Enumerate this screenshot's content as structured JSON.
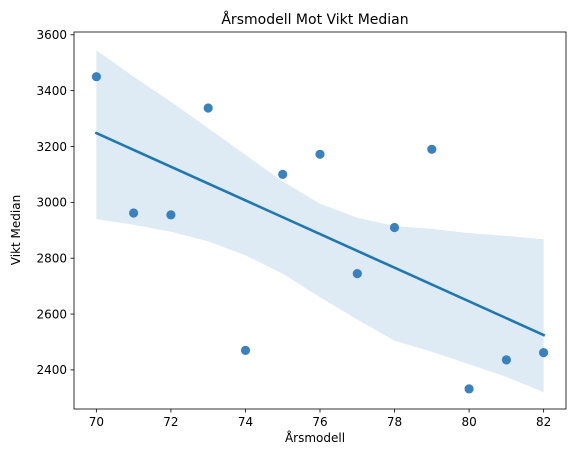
{
  "chart_data": {
    "type": "scatter",
    "title": "Årsmodell Mot Vikt Median",
    "xlabel": "Årsmodell",
    "ylabel": "Vikt Median",
    "xlim": [
      69.4,
      82.6
    ],
    "ylim": [
      2260,
      3610
    ],
    "xticks": [
      "70",
      "72",
      "74",
      "76",
      "78",
      "80",
      "82"
    ],
    "yticks": [
      "2400",
      "2600",
      "2800",
      "3000",
      "3200",
      "3400",
      "3600"
    ],
    "grid": false,
    "legend": "none",
    "points": [
      {
        "x": 70,
        "y": 3450
      },
      {
        "x": 71,
        "y": 2962
      },
      {
        "x": 72,
        "y": 2955
      },
      {
        "x": 73,
        "y": 3338
      },
      {
        "x": 74,
        "y": 2470
      },
      {
        "x": 75,
        "y": 3100
      },
      {
        "x": 76,
        "y": 3172
      },
      {
        "x": 77,
        "y": 2745
      },
      {
        "x": 78,
        "y": 2910
      },
      {
        "x": 79,
        "y": 3190
      },
      {
        "x": 80,
        "y": 2332
      },
      {
        "x": 81,
        "y": 2436
      },
      {
        "x": 82,
        "y": 2462
      }
    ],
    "regression_line": [
      {
        "x": 70,
        "y": 3248
      },
      {
        "x": 82,
        "y": 2525
      }
    ],
    "confidence_band": [
      {
        "x": 70,
        "lower": 2940,
        "upper": 3545
      },
      {
        "x": 71,
        "lower": 2920,
        "upper": 3450
      },
      {
        "x": 72,
        "lower": 2895,
        "upper": 3360
      },
      {
        "x": 73,
        "lower": 2860,
        "upper": 3265
      },
      {
        "x": 74,
        "lower": 2810,
        "upper": 3170
      },
      {
        "x": 75,
        "lower": 2745,
        "upper": 3075
      },
      {
        "x": 76,
        "lower": 2660,
        "upper": 2995
      },
      {
        "x": 77,
        "lower": 2580,
        "upper": 2945
      },
      {
        "x": 78,
        "lower": 2505,
        "upper": 2915
      },
      {
        "x": 79,
        "lower": 2465,
        "upper": 2905
      },
      {
        "x": 80,
        "lower": 2420,
        "upper": 2890
      },
      {
        "x": 81,
        "lower": 2375,
        "upper": 2880
      },
      {
        "x": 82,
        "lower": 2320,
        "upper": 2868
      }
    ],
    "colors": {
      "points": "#2f7bbb",
      "line": "#1f77b4",
      "band": "#1f77b4"
    }
  }
}
